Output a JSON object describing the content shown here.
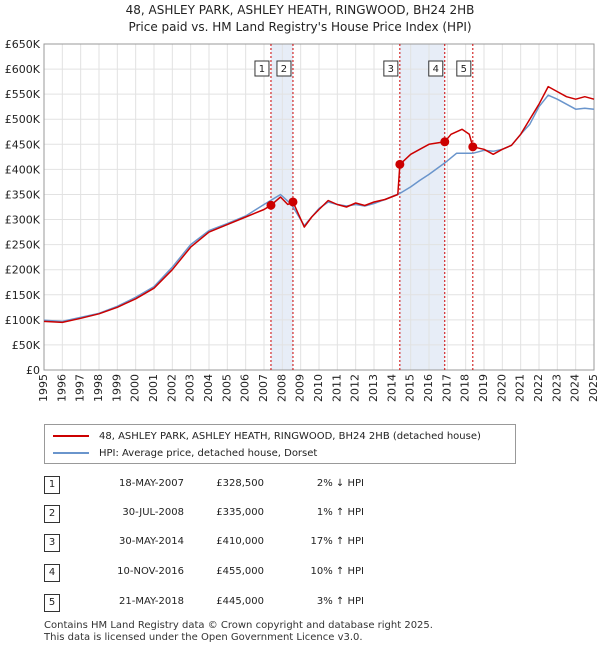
{
  "title_line1": "48, ASHLEY PARK, ASHLEY HEATH, RINGWOOD, BH24 2HB",
  "title_line2": "Price paid vs. HM Land Registry's House Price Index (HPI)",
  "colors": {
    "property": "#cc0000",
    "hpi": "#6a95cc",
    "shade": "#dde6f4",
    "marker_line": "#cc0000"
  },
  "legend": {
    "property_label": "48, ASHLEY PARK, ASHLEY HEATH, RINGWOOD, BH24 2HB (detached house)",
    "hpi_label": "HPI: Average price, detached house, Dorset"
  },
  "sales": [
    {
      "num": "1",
      "date": "18-MAY-2007",
      "price": "£328,500",
      "hpi": "2% ↓ HPI"
    },
    {
      "num": "2",
      "date": "30-JUL-2008",
      "price": "£335,000",
      "hpi": "1% ↑ HPI"
    },
    {
      "num": "3",
      "date": "30-MAY-2014",
      "price": "£410,000",
      "hpi": "17% ↑ HPI"
    },
    {
      "num": "4",
      "date": "10-NOV-2016",
      "price": "£455,000",
      "hpi": "10% ↑ HPI"
    },
    {
      "num": "5",
      "date": "21-MAY-2018",
      "price": "£445,000",
      "hpi": "3% ↑ HPI"
    }
  ],
  "footer_line1": "Contains HM Land Registry data © Crown copyright and database right 2025.",
  "footer_line2": "This data is licensed under the Open Government Licence v3.0.",
  "chart_data": {
    "type": "line",
    "xlim": [
      1995,
      2025
    ],
    "ylim": [
      0,
      650000
    ],
    "grid": true,
    "x_ticks": [
      "1995",
      "1996",
      "1997",
      "1998",
      "1999",
      "2000",
      "2001",
      "2002",
      "2003",
      "2004",
      "2005",
      "2006",
      "2007",
      "2008",
      "2009",
      "2010",
      "2011",
      "2012",
      "2013",
      "2014",
      "2015",
      "2016",
      "2017",
      "2018",
      "2019",
      "2020",
      "2021",
      "2022",
      "2023",
      "2024",
      "2025"
    ],
    "y_ticks": [
      {
        "v": 0,
        "label": "£0"
      },
      {
        "v": 50000,
        "label": "£50K"
      },
      {
        "v": 100000,
        "label": "£100K"
      },
      {
        "v": 150000,
        "label": "£150K"
      },
      {
        "v": 200000,
        "label": "£200K"
      },
      {
        "v": 250000,
        "label": "£250K"
      },
      {
        "v": 300000,
        "label": "£300K"
      },
      {
        "v": 350000,
        "label": "£350K"
      },
      {
        "v": 400000,
        "label": "£400K"
      },
      {
        "v": 450000,
        "label": "£450K"
      },
      {
        "v": 500000,
        "label": "£500K"
      },
      {
        "v": 550000,
        "label": "£550K"
      },
      {
        "v": 600000,
        "label": "£600K"
      },
      {
        "v": 650000,
        "label": "£650K"
      }
    ],
    "sale_markers": [
      {
        "label": "1",
        "x": 2007.38,
        "y": 328500
      },
      {
        "label": "2",
        "x": 2008.58,
        "y": 335000
      },
      {
        "label": "3",
        "x": 2014.41,
        "y": 410000
      },
      {
        "label": "4",
        "x": 2016.86,
        "y": 455000
      },
      {
        "label": "5",
        "x": 2018.39,
        "y": 445000
      }
    ],
    "shaded_ranges": [
      [
        2007.38,
        2008.58
      ],
      [
        2014.41,
        2016.86
      ],
      [
        2018.39,
        2018.39
      ]
    ],
    "series": [
      {
        "name": "48, ASHLEY PARK, ASHLEY HEATH, RINGWOOD, BH24 2HB (detached house)",
        "color": "#cc0000",
        "points": [
          [
            1995,
            97000
          ],
          [
            1996,
            95000
          ],
          [
            1997,
            103000
          ],
          [
            1998,
            112000
          ],
          [
            1999,
            125000
          ],
          [
            2000,
            142000
          ],
          [
            2001,
            163000
          ],
          [
            2002,
            200000
          ],
          [
            2003,
            245000
          ],
          [
            2004,
            275000
          ],
          [
            2005,
            290000
          ],
          [
            2006,
            305000
          ],
          [
            2007,
            320000
          ],
          [
            2007.38,
            328500
          ],
          [
            2007.9,
            345000
          ],
          [
            2008.3,
            330000
          ],
          [
            2008.58,
            335000
          ],
          [
            2009.2,
            285000
          ],
          [
            2009.6,
            305000
          ],
          [
            2010,
            320000
          ],
          [
            2010.5,
            338000
          ],
          [
            2011,
            330000
          ],
          [
            2011.5,
            325000
          ],
          [
            2012,
            333000
          ],
          [
            2012.5,
            328000
          ],
          [
            2013,
            335000
          ],
          [
            2013.6,
            340000
          ],
          [
            2014.3,
            350000
          ],
          [
            2014.41,
            410000
          ],
          [
            2015,
            430000
          ],
          [
            2015.5,
            440000
          ],
          [
            2016,
            450000
          ],
          [
            2016.86,
            455000
          ],
          [
            2017.2,
            470000
          ],
          [
            2017.8,
            480000
          ],
          [
            2018.2,
            470000
          ],
          [
            2018.39,
            445000
          ],
          [
            2019,
            440000
          ],
          [
            2019.5,
            430000
          ],
          [
            2020,
            440000
          ],
          [
            2020.5,
            448000
          ],
          [
            2021,
            470000
          ],
          [
            2021.5,
            500000
          ],
          [
            2022,
            530000
          ],
          [
            2022.5,
            565000
          ],
          [
            2023,
            555000
          ],
          [
            2023.5,
            545000
          ],
          [
            2024,
            540000
          ],
          [
            2024.5,
            545000
          ],
          [
            2025,
            540000
          ]
        ]
      },
      {
        "name": "HPI: Average price, detached house, Dorset",
        "color": "#6a95cc",
        "points": [
          [
            1995,
            99000
          ],
          [
            1996,
            97000
          ],
          [
            1997,
            105000
          ],
          [
            1998,
            113000
          ],
          [
            1999,
            127000
          ],
          [
            2000,
            145000
          ],
          [
            2001,
            166000
          ],
          [
            2002,
            205000
          ],
          [
            2003,
            250000
          ],
          [
            2004,
            278000
          ],
          [
            2005,
            292000
          ],
          [
            2006,
            307000
          ],
          [
            2007,
            330000
          ],
          [
            2007.9,
            350000
          ],
          [
            2008.5,
            330000
          ],
          [
            2009.2,
            288000
          ],
          [
            2009.6,
            305000
          ],
          [
            2010,
            322000
          ],
          [
            2010.5,
            335000
          ],
          [
            2011,
            330000
          ],
          [
            2011.5,
            327000
          ],
          [
            2012,
            330000
          ],
          [
            2012.5,
            327000
          ],
          [
            2013,
            332000
          ],
          [
            2013.6,
            340000
          ],
          [
            2014.4,
            352000
          ],
          [
            2015,
            365000
          ],
          [
            2015.5,
            378000
          ],
          [
            2016,
            390000
          ],
          [
            2016.86,
            413000
          ],
          [
            2017.5,
            432000
          ],
          [
            2018.39,
            432000
          ],
          [
            2019,
            438000
          ],
          [
            2019.5,
            436000
          ],
          [
            2020,
            440000
          ],
          [
            2020.5,
            448000
          ],
          [
            2021,
            470000
          ],
          [
            2021.5,
            490000
          ],
          [
            2022,
            525000
          ],
          [
            2022.5,
            548000
          ],
          [
            2023,
            540000
          ],
          [
            2023.5,
            530000
          ],
          [
            2024,
            520000
          ],
          [
            2024.5,
            522000
          ],
          [
            2025,
            520000
          ]
        ]
      }
    ]
  }
}
